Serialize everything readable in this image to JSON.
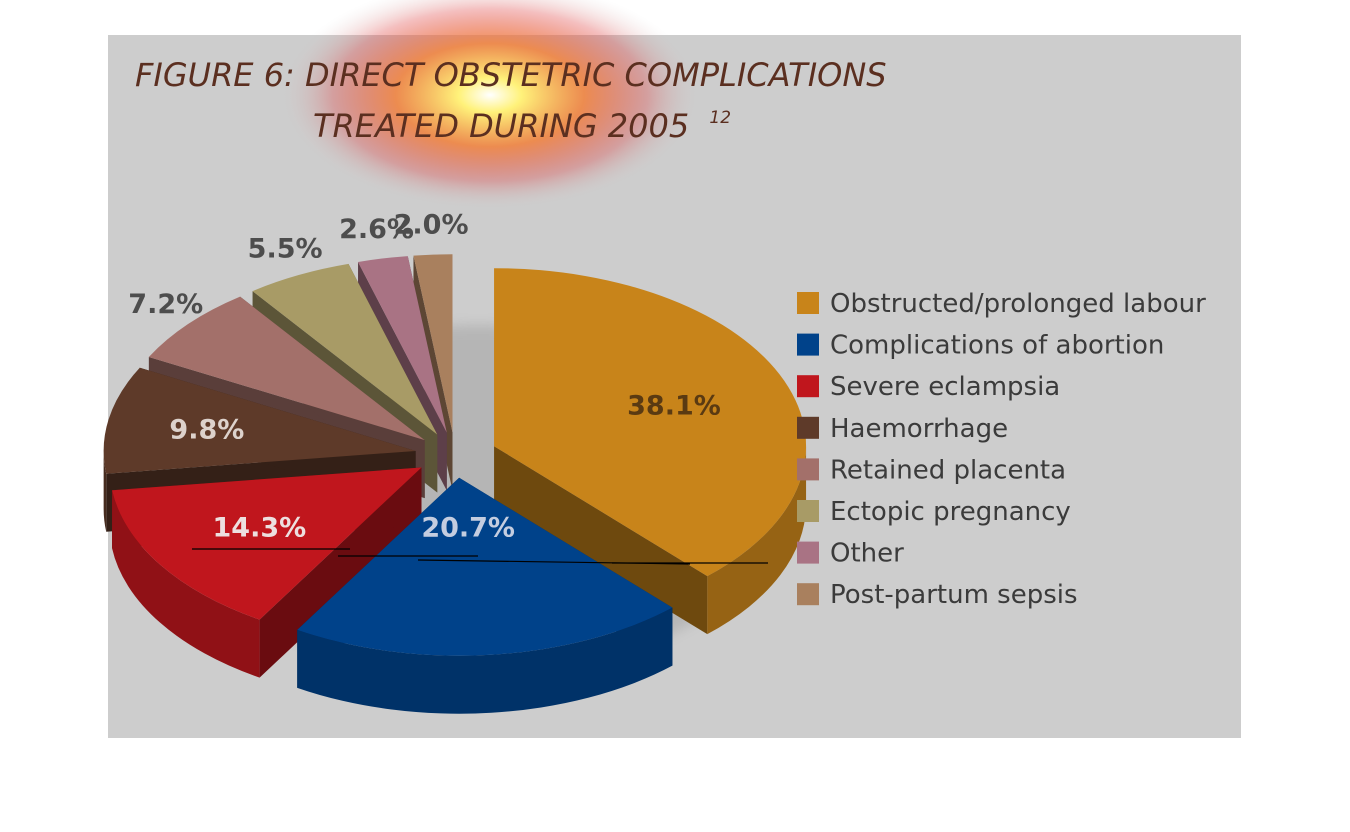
{
  "chart_data": {
    "type": "pie",
    "title_line1": "FIGURE 6: DIRECT OBSTETRIC COMPLICATIONS",
    "title_line2": "TREATED DURING 2005",
    "title_superscript": "12",
    "legend_position": "right",
    "slices": [
      {
        "name": "Obstructed/prolonged labour",
        "value": 38.1,
        "label": "38.1%",
        "color": "#c8841a"
      },
      {
        "name": "Complications of abortion",
        "value": 20.7,
        "label": "20.7%",
        "color": "#00428a"
      },
      {
        "name": "Severe eclampsia",
        "value": 14.3,
        "label": "14.3%",
        "color": "#c0161d"
      },
      {
        "name": "Haemorrhage",
        "value": 9.8,
        "label": "9.8%",
        "color": "#5e3a29"
      },
      {
        "name": "Retained placenta",
        "value": 7.2,
        "label": "7.2%",
        "color": "#a3706a"
      },
      {
        "name": "Ectopic pregnancy",
        "value": 5.5,
        "label": "5.5%",
        "color": "#a89b66"
      },
      {
        "name": "Other",
        "value": 2.6,
        "label": "2.6%",
        "color": "#a97384"
      },
      {
        "name": "Post-partum sepsis",
        "value": 2.0,
        "label": "2.0%",
        "color": "#a9805e"
      }
    ]
  }
}
